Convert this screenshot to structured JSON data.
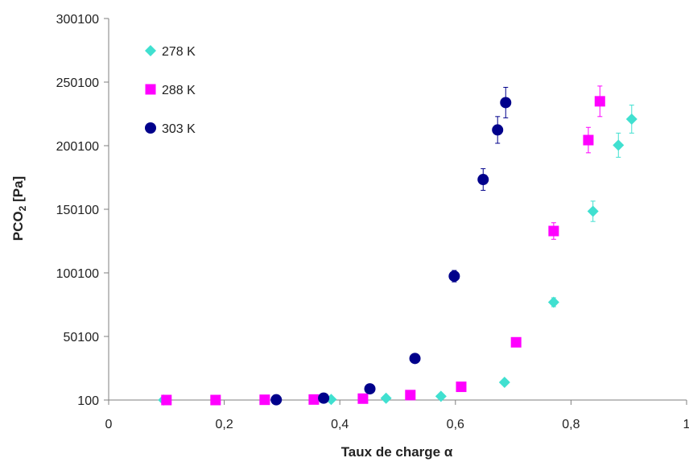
{
  "chart_data": {
    "type": "scatter",
    "xlabel": "Taux de charge α",
    "ylabel_main": "PCO",
    "ylabel_sub": "2",
    "ylabel_unit": " [Pa]",
    "xlim": [
      0,
      1
    ],
    "ylim": [
      100,
      300100
    ],
    "x_ticks": [
      0,
      0.2,
      0.4,
      0.6,
      0.8,
      1
    ],
    "x_tick_labels": [
      "0",
      "0,2",
      "0,4",
      "0,6",
      "0,8",
      "1"
    ],
    "y_ticks": [
      100,
      50100,
      100100,
      150100,
      200100,
      250100,
      300100
    ],
    "y_tick_labels": [
      "100",
      "50100",
      "100100",
      "150100",
      "200100",
      "250100",
      "300100"
    ],
    "grid": false,
    "legend_position": "top-left",
    "series": [
      {
        "name": "278 K",
        "marker": "diamond",
        "color": "#40E0D0",
        "points": [
          {
            "x": 0.095,
            "y": 100
          },
          {
            "x": 0.385,
            "y": 600
          },
          {
            "x": 0.48,
            "y": 1500
          },
          {
            "x": 0.575,
            "y": 3000
          },
          {
            "x": 0.685,
            "y": 14000
          },
          {
            "x": 0.77,
            "y": 77000,
            "err": 3500
          },
          {
            "x": 0.838,
            "y": 148500,
            "err": 8000
          },
          {
            "x": 0.882,
            "y": 200500,
            "err": 9500
          },
          {
            "x": 0.905,
            "y": 221000,
            "err": 11000
          }
        ]
      },
      {
        "name": "288 K",
        "marker": "square",
        "color": "#FF00FF",
        "points": [
          {
            "x": 0.1,
            "y": 100
          },
          {
            "x": 0.185,
            "y": 100
          },
          {
            "x": 0.27,
            "y": 300
          },
          {
            "x": 0.355,
            "y": 500
          },
          {
            "x": 0.44,
            "y": 1200
          },
          {
            "x": 0.522,
            "y": 4000
          },
          {
            "x": 0.61,
            "y": 10500
          },
          {
            "x": 0.705,
            "y": 45500
          },
          {
            "x": 0.77,
            "y": 133000,
            "err": 6500
          },
          {
            "x": 0.83,
            "y": 204500,
            "err": 10000
          },
          {
            "x": 0.85,
            "y": 235000,
            "err": 12000
          }
        ]
      },
      {
        "name": "303 K",
        "marker": "circle",
        "color": "#00008B",
        "points": [
          {
            "x": 0.29,
            "y": 300
          },
          {
            "x": 0.372,
            "y": 1600
          },
          {
            "x": 0.452,
            "y": 8900
          },
          {
            "x": 0.53,
            "y": 32800
          },
          {
            "x": 0.598,
            "y": 97500,
            "err": 4500
          },
          {
            "x": 0.648,
            "y": 173500,
            "err": 8500
          },
          {
            "x": 0.673,
            "y": 212500,
            "err": 10500
          },
          {
            "x": 0.687,
            "y": 234000,
            "err": 12000
          }
        ]
      }
    ]
  }
}
